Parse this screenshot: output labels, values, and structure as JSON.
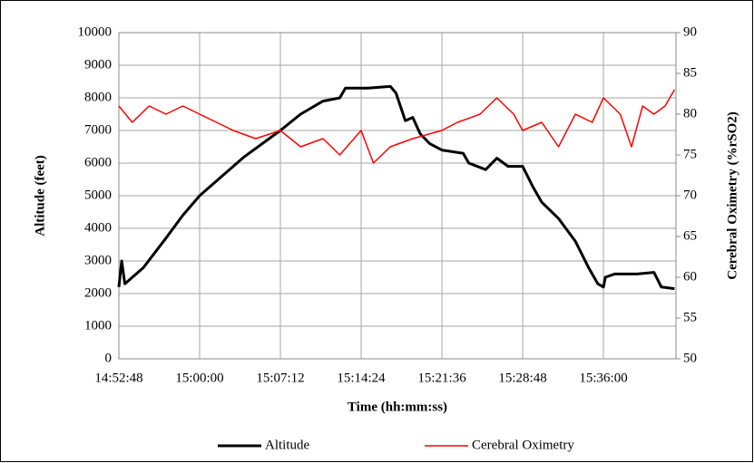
{
  "chart_data": {
    "type": "line",
    "xlabel": "Time (hh:mm:ss)",
    "ylabel": "Altitude (feet)",
    "y2label": "Cerebral Oximetry (%rSO2)",
    "xlim": [
      "14:52:48",
      "15:42:28"
    ],
    "xticks": [
      "14:52:48",
      "15:00:00",
      "15:07:12",
      "15:14:24",
      "15:21:36",
      "15:28:48",
      "15:36:00"
    ],
    "ylim": [
      0,
      10000
    ],
    "yticks": [
      0,
      1000,
      2000,
      3000,
      4000,
      5000,
      6000,
      7000,
      8000,
      9000,
      10000
    ],
    "y2lim": [
      50,
      90
    ],
    "y2ticks": [
      50,
      55,
      60,
      65,
      70,
      75,
      80,
      85,
      90
    ],
    "grid": true,
    "legend": "bottom",
    "series": [
      {
        "name": "Altitude",
        "color": "#000000",
        "axis": "y",
        "x": [
          "14:52:48",
          "14:53:03",
          "14:53:20",
          "14:55:00",
          "14:57:00",
          "14:58:30",
          "15:00:00",
          "15:02:00",
          "15:04:00",
          "15:07:12",
          "15:09:00",
          "15:11:00",
          "15:12:30",
          "15:13:00",
          "15:15:00",
          "15:17:00",
          "15:17:30",
          "15:18:20",
          "15:19:00",
          "15:19:40",
          "15:20:30",
          "15:21:36",
          "15:23:30",
          "15:24:00",
          "15:25:30",
          "15:26:30",
          "15:27:30",
          "15:28:48",
          "15:29:40",
          "15:30:30",
          "15:32:00",
          "15:33:30",
          "15:34:40",
          "15:35:30",
          "15:36:00",
          "15:36:10",
          "15:37:00",
          "15:39:00",
          "15:40:30",
          "15:41:10",
          "15:42:20"
        ],
        "values": [
          2200,
          3000,
          2300,
          2800,
          3700,
          4400,
          5000,
          5600,
          6200,
          7000,
          7500,
          7900,
          8000,
          8300,
          8300,
          8350,
          8150,
          7300,
          7400,
          6900,
          6600,
          6400,
          6300,
          6000,
          5800,
          6150,
          5900,
          5900,
          5300,
          4800,
          4300,
          3600,
          2800,
          2300,
          2200,
          2500,
          2600,
          2600,
          2650,
          2200,
          2150
        ]
      },
      {
        "name": "Cerebral Oximetry",
        "color": "#ff0000",
        "axis": "y2",
        "x": [
          "14:52:48",
          "14:54:00",
          "14:55:30",
          "14:57:00",
          "14:58:30",
          "15:00:00",
          "15:01:30",
          "15:03:00",
          "15:05:00",
          "15:07:12",
          "15:09:00",
          "15:11:00",
          "15:12:30",
          "15:14:24",
          "15:15:30",
          "15:17:00",
          "15:19:00",
          "15:21:36",
          "15:23:00",
          "15:25:00",
          "15:26:30",
          "15:28:00",
          "15:28:48",
          "15:30:30",
          "15:32:00",
          "15:33:30",
          "15:35:00",
          "15:36:00",
          "15:37:30",
          "15:38:30",
          "15:39:30",
          "15:40:30",
          "15:41:30",
          "15:42:20"
        ],
        "values": [
          81,
          79,
          81,
          80,
          81,
          80,
          79,
          78,
          77,
          78,
          76,
          77,
          75,
          78,
          74,
          76,
          77,
          78,
          79,
          80,
          82,
          80,
          78,
          79,
          76,
          80,
          79,
          82,
          80,
          76,
          81,
          80,
          81,
          83
        ]
      }
    ]
  }
}
